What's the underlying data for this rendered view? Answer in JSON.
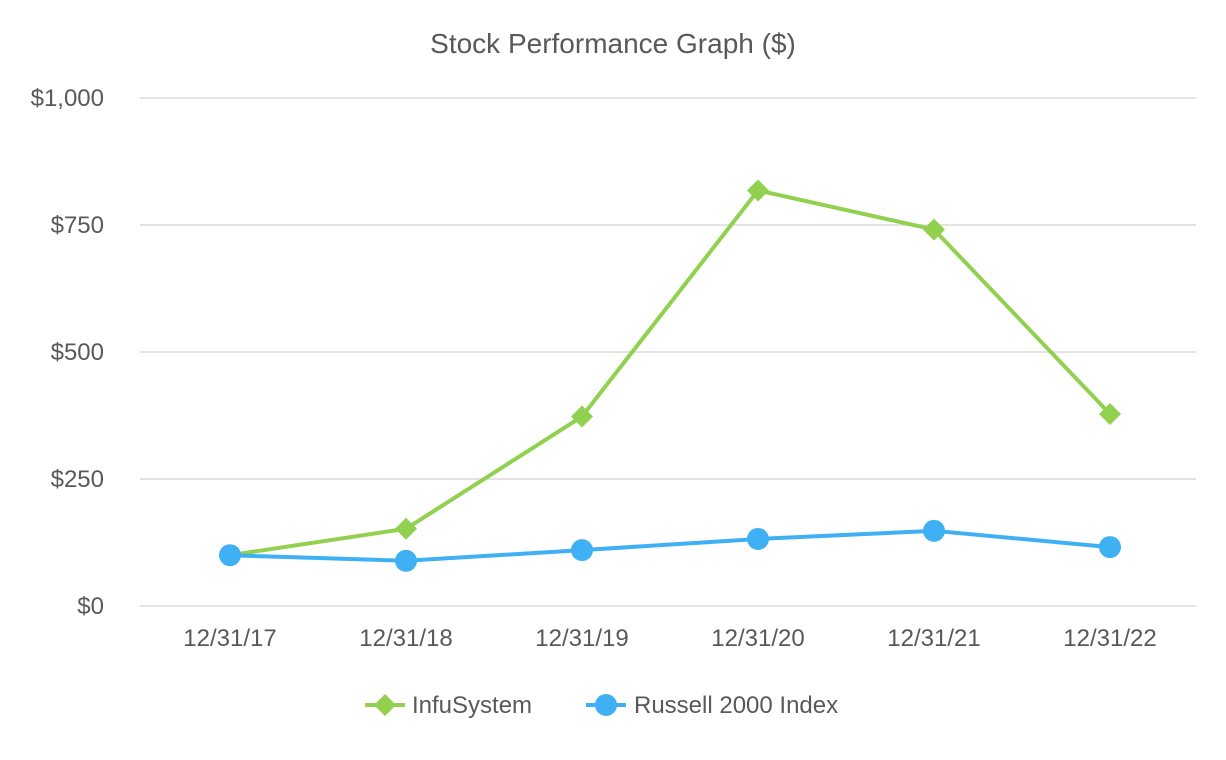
{
  "chart_data": {
    "type": "line",
    "title": "Stock Performance Graph ($)",
    "xlabel": "",
    "ylabel": "",
    "categories": [
      "12/31/17",
      "12/31/18",
      "12/31/19",
      "12/31/20",
      "12/31/21",
      "12/31/22"
    ],
    "ylim": [
      0,
      1000
    ],
    "yticks": [
      0,
      250,
      500,
      750,
      1000
    ],
    "ytick_labels": [
      "$0",
      "$250",
      "$500",
      "$750",
      "$1,000"
    ],
    "grid": true,
    "legend_position": "bottom",
    "series": [
      {
        "name": "InfuSystem",
        "color": "#92d050",
        "marker": "diamond",
        "values": [
          100,
          152,
          373,
          818,
          741,
          378
        ]
      },
      {
        "name": "Russell 2000 Index",
        "color": "#3fb0f3",
        "marker": "circle",
        "values": [
          100,
          89,
          110,
          132,
          148,
          116
        ]
      }
    ]
  }
}
